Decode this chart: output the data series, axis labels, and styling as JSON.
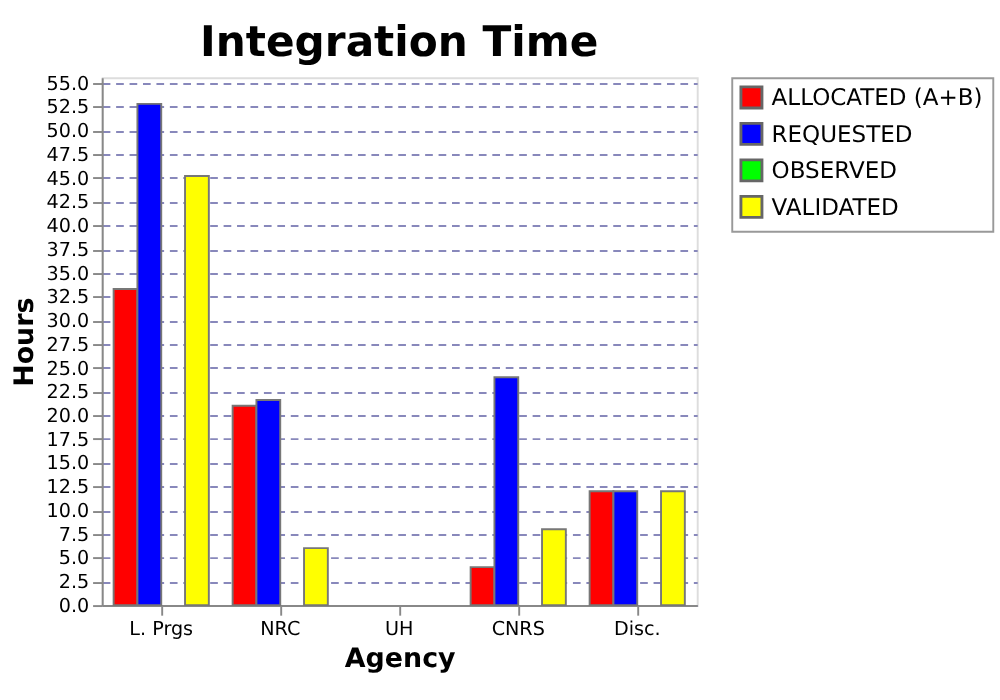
{
  "chart_data": {
    "type": "bar",
    "title": "Integration Time",
    "xlabel": "Agency",
    "ylabel": "Hours",
    "categories": [
      "L. Prgs",
      "NRC",
      "UH",
      "CNRS",
      "Disc."
    ],
    "series": [
      {
        "name": "ALLOCATED (A+B)",
        "color": "#ff0000",
        "values": [
          33.3,
          21.0,
          0,
          4.0,
          12.0
        ]
      },
      {
        "name": "REQUESTED",
        "color": "#0000ff",
        "values": [
          52.8,
          21.6,
          0,
          24.0,
          12.0
        ]
      },
      {
        "name": "OBSERVED",
        "color": "#00ff00",
        "values": [
          0,
          0,
          0,
          0,
          0
        ]
      },
      {
        "name": "VALIDATED",
        "color": "#ffff00",
        "values": [
          45.2,
          6.0,
          0,
          8.0,
          12.0
        ]
      }
    ],
    "ylim": [
      0,
      55.6
    ],
    "yticks": [
      {
        "value": 0,
        "label": "0.0"
      },
      {
        "value": 2.5,
        "label": "2.5"
      },
      {
        "value": 5,
        "label": "5.0"
      },
      {
        "value": 7.5,
        "label": "7.5"
      },
      {
        "value": 10,
        "label": "10.0"
      },
      {
        "value": 12.5,
        "label": "12.5"
      },
      {
        "value": 15,
        "label": "15.0"
      },
      {
        "value": 17.5,
        "label": "17.5"
      },
      {
        "value": 20,
        "label": "20.0"
      },
      {
        "value": 22.5,
        "label": "22.5"
      },
      {
        "value": 25,
        "label": "25.0"
      },
      {
        "value": 27.5,
        "label": "27.5"
      },
      {
        "value": 30,
        "label": "30.0"
      },
      {
        "value": 32.5,
        "label": "32.5"
      },
      {
        "value": 35,
        "label": "35.0"
      },
      {
        "value": 37.5,
        "label": "37.5"
      },
      {
        "value": 40,
        "label": "40.0"
      },
      {
        "value": 42.5,
        "label": "42.5"
      },
      {
        "value": 45,
        "label": "45.0"
      },
      {
        "value": 47.5,
        "label": "47.5"
      },
      {
        "value": 50,
        "label": "50.0"
      },
      {
        "value": 52.5,
        "label": "52.5"
      },
      {
        "value": 55,
        "label": "55.0"
      }
    ],
    "grid": "y",
    "legend": "right"
  }
}
